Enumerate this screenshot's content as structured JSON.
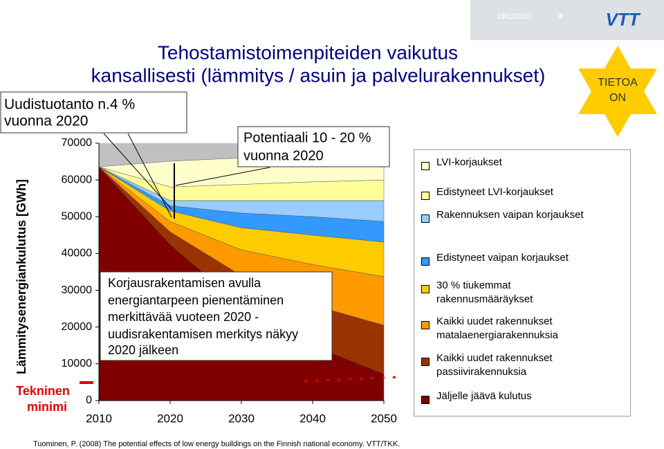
{
  "header": {
    "date": "19/1/2010",
    "page": "8",
    "logo": "VTT"
  },
  "chart_data": {
    "type": "area",
    "stacked": true,
    "title": [
      "Tehostamistoimenpiteiden vaikutus",
      "kansallisesti (lämmitys / asuin ja palvelurakennukset)"
    ],
    "y_label": "Lämmitysenergiankulutus [GWh]",
    "x": [
      2010,
      2020,
      2030,
      2040,
      2050
    ],
    "xlim": [
      2010,
      2050
    ],
    "xticks": [
      2010,
      2020,
      2030,
      2040,
      2050
    ],
    "ylim": [
      0,
      70000
    ],
    "yticks": [
      0,
      10000,
      20000,
      30000,
      40000,
      50000,
      60000,
      70000
    ],
    "plot_background": "#c0c0c0",
    "series": [
      {
        "name": "LVI-korjaukset",
        "color": "#ffffcc",
        "values": [
          0,
          7000,
          7200,
          7500,
          7900
        ]
      },
      {
        "name": "Edistyneet LVI-korjaukset",
        "color": "#ffff99",
        "values": [
          0,
          3700,
          4400,
          5100,
          5600
        ]
      },
      {
        "name": "Rakennuksen vaipan korjaukset",
        "color": "#99ccff",
        "values": [
          0,
          1400,
          3400,
          4400,
          5700
        ]
      },
      {
        "name": "Edistyneet vaipan korjaukset",
        "color": "#3399ff",
        "values": [
          0,
          1400,
          4000,
          5000,
          5600
        ]
      },
      {
        "name": "30 % tiukemmat rakennusmääräykset",
        "color": "#ffcc00",
        "values": [
          0,
          2900,
          6000,
          8000,
          9400
        ]
      },
      {
        "name": "Kaikki uudet rakennukset matalaenergiarakennuksia",
        "color": "#ff9900",
        "values": [
          0,
          2800,
          7000,
          11000,
          13200
        ]
      },
      {
        "name": "Kaikki uudet rakennukset passiivirakennuksia",
        "color": "#993300",
        "values": [
          0,
          3400,
          8000,
          11000,
          13200
        ]
      },
      {
        "name": "Jäljelle jäävä kulutus",
        "color": "#800000",
        "values": [
          63600,
          42500,
          26000,
          15000,
          7300
        ]
      }
    ],
    "annotations": {
      "new_construction": [
        "Uudistuotanto n.4 %",
        "vuonna 2020"
      ],
      "potential": [
        "Potentiaali 10 - 20 %",
        "vuonna 2020"
      ],
      "renovation": [
        "Korjausrakentamisen avulla",
        "energiantarpeen pienentäminen",
        "merkittävää vuoteen 2020 -",
        "uudisrakentamisen merkitys näkyy",
        "2020 jälkeen"
      ],
      "minimum": [
        "Tekninen",
        "minimi"
      ],
      "info_star": [
        "TIETOA",
        "ON"
      ]
    }
  },
  "footnote": "Tuominen, P. (2008) The potential effects of low energy buildings on the Finnish national economy. VTT/TKK."
}
